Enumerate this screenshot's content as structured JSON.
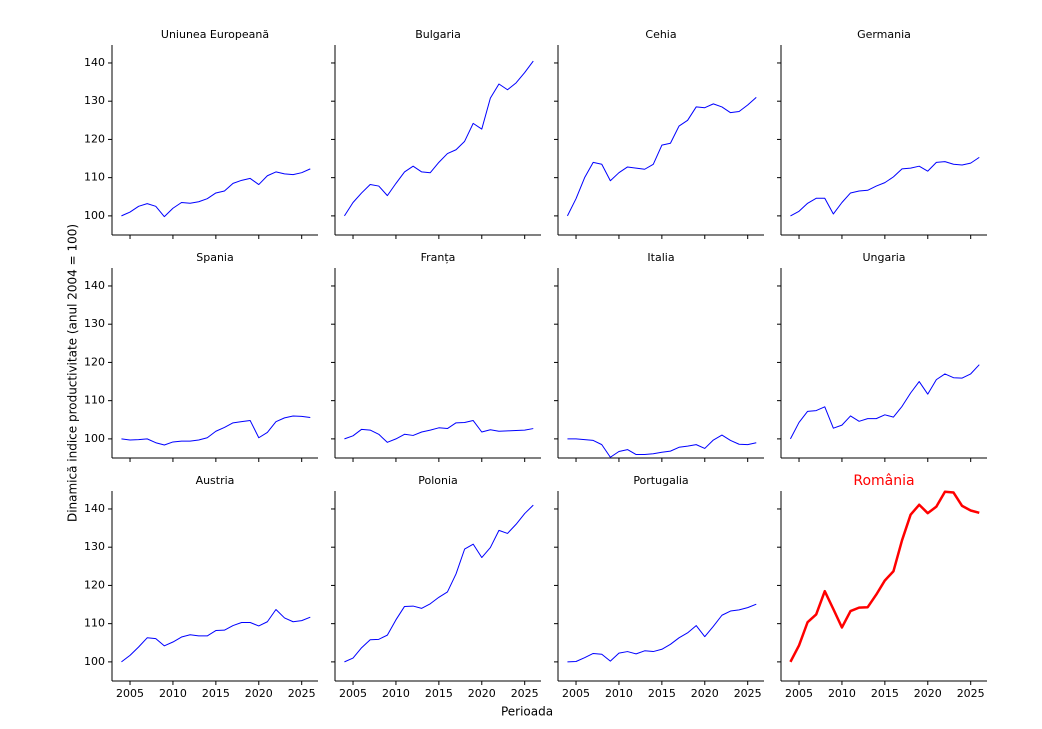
{
  "chart_data": {
    "type": "line",
    "xlabel": "Perioada",
    "ylabel": "Dinamică indice productivitate (anul 2004 = 100)",
    "x": [
      2004,
      2005,
      2006,
      2007,
      2008,
      2009,
      2010,
      2011,
      2012,
      2013,
      2014,
      2015,
      2016,
      2017,
      2018,
      2019,
      2020,
      2021,
      2022,
      2023,
      2024,
      2025,
      2026
    ],
    "xlim": [
      2002.9,
      2026.9
    ],
    "xticks": [
      2005,
      2010,
      2015,
      2020,
      2025
    ],
    "ylim": [
      95,
      144.7
    ],
    "yticks": [
      100,
      110,
      120,
      130,
      140
    ],
    "panels": [
      {
        "title": "Uniunea Europeană",
        "color": "#0000ff",
        "line_width": 1,
        "values": [
          100,
          101,
          102.5,
          103.2,
          102.5,
          99.8,
          102,
          103.5,
          103.3,
          103.7,
          104.5,
          106,
          106.5,
          108.5,
          109.3,
          109.8,
          108.2,
          110.5,
          111.5,
          111,
          110.8,
          111.3,
          112.3
        ]
      },
      {
        "title": "Bulgaria",
        "color": "#0000ff",
        "line_width": 1,
        "values": [
          100,
          103.5,
          106,
          108.2,
          107.8,
          105.3,
          108.5,
          111.5,
          113,
          111.5,
          111.3,
          114,
          116.3,
          117.3,
          119.5,
          124.2,
          122.7,
          130.8,
          134.5,
          133,
          134.8,
          137.5,
          140.5
        ]
      },
      {
        "title": "Cehia",
        "color": "#0000ff",
        "line_width": 1,
        "values": [
          100,
          104.5,
          110,
          114,
          113.5,
          109.2,
          111.3,
          112.8,
          112.5,
          112.2,
          113.5,
          118.5,
          119,
          123.5,
          125,
          128.5,
          128.3,
          129.3,
          128.5,
          127,
          127.3,
          129,
          131
        ]
      },
      {
        "title": "Germania",
        "color": "#0000ff",
        "line_width": 1,
        "values": [
          100,
          101.2,
          103.3,
          104.6,
          104.6,
          100.5,
          103.5,
          106,
          106.5,
          106.7,
          107.8,
          108.7,
          110.2,
          112.3,
          112.5,
          113,
          111.7,
          114,
          114.2,
          113.5,
          113.3,
          113.8,
          115.3
        ]
      },
      {
        "title": "Spania",
        "color": "#0000ff",
        "line_width": 1,
        "values": [
          100,
          99.7,
          99.8,
          100,
          99,
          98.4,
          99.2,
          99.4,
          99.4,
          99.7,
          100.3,
          102,
          103,
          104.2,
          104.5,
          104.8,
          100.3,
          101.7,
          104.5,
          105.5,
          106,
          105.9,
          105.6
        ]
      },
      {
        "title": "Franța",
        "color": "#0000ff",
        "line_width": 1,
        "values": [
          100,
          100.8,
          102.5,
          102.3,
          101.2,
          99.1,
          100,
          101.2,
          100.9,
          101.8,
          102.3,
          102.9,
          102.7,
          104.2,
          104.3,
          104.8,
          101.8,
          102.4,
          102,
          102.1,
          102.2,
          102.3,
          102.7
        ]
      },
      {
        "title": "Italia",
        "color": "#0000ff",
        "line_width": 1,
        "values": [
          100,
          100,
          99.8,
          99.6,
          98.5,
          95.2,
          96.7,
          97.2,
          95.9,
          95.9,
          96.1,
          96.5,
          96.8,
          97.8,
          98.1,
          98.5,
          97.5,
          99.7,
          101,
          99.6,
          98.6,
          98.5,
          99
        ]
      },
      {
        "title": "Ungaria",
        "color": "#0000ff",
        "line_width": 1,
        "values": [
          100,
          104.3,
          107.2,
          107.4,
          108.4,
          102.8,
          103.6,
          106,
          104.6,
          105.3,
          105.3,
          106.3,
          105.7,
          108.5,
          112,
          115,
          111.7,
          115.5,
          117,
          116,
          115.9,
          117,
          119.4
        ]
      },
      {
        "title": "Austria",
        "color": "#0000ff",
        "line_width": 1,
        "values": [
          100,
          101.7,
          103.9,
          106.3,
          106.1,
          104.2,
          105.2,
          106.5,
          107.1,
          106.8,
          106.8,
          108.2,
          108.3,
          109.5,
          110.3,
          110.3,
          109.4,
          110.5,
          113.7,
          111.5,
          110.5,
          110.8,
          111.7
        ]
      },
      {
        "title": "Polonia",
        "color": "#0000ff",
        "line_width": 1,
        "values": [
          100,
          101,
          103.7,
          105.8,
          105.9,
          107,
          111,
          114.5,
          114.6,
          114,
          115.2,
          116.9,
          118.3,
          123,
          129.5,
          130.8,
          127.3,
          129.9,
          134.4,
          133.6,
          136,
          138.8,
          141
        ]
      },
      {
        "title": "Portugalia",
        "color": "#0000ff",
        "line_width": 1,
        "values": [
          100,
          100.1,
          101.1,
          102.2,
          102,
          100.2,
          102.3,
          102.7,
          102.1,
          102.9,
          102.7,
          103.3,
          104.6,
          106.3,
          107.6,
          109.5,
          106.6,
          109.3,
          112.2,
          113.3,
          113.6,
          114.2,
          115.1
        ]
      },
      {
        "title": "România",
        "title_color": "#ff0000",
        "color": "#ff0000",
        "line_width": 2.5,
        "values": [
          100,
          104.3,
          110.4,
          112.4,
          118.5,
          113.8,
          109,
          113.3,
          114.2,
          114.3,
          117.6,
          121.3,
          123.7,
          131.8,
          138.5,
          141.1,
          138.9,
          140.6,
          144.5,
          144.3,
          140.8,
          139.6,
          139
        ]
      }
    ]
  }
}
